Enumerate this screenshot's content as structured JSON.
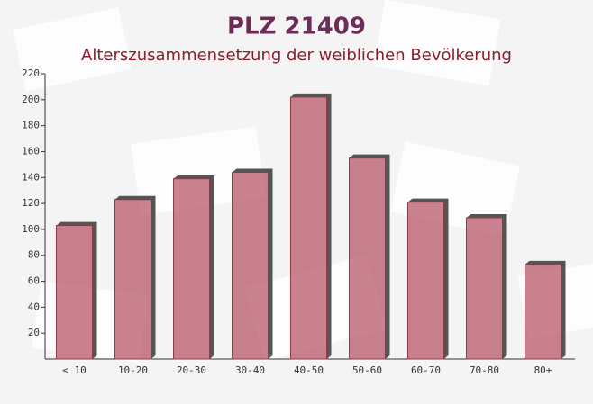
{
  "chart_data": {
    "type": "bar",
    "title": "PLZ 21409",
    "subtitle": "Alterszusammensetzung der weiblichen Bevölkerung",
    "categories": [
      "< 10",
      "10-20",
      "20-30",
      "30-40",
      "40-50",
      "50-60",
      "60-70",
      "70-80",
      "80+"
    ],
    "values": [
      103,
      123,
      139,
      144,
      202,
      155,
      121,
      109,
      73
    ],
    "color": "#b85a68",
    "ylim": [
      0,
      220
    ],
    "yticks": [
      20,
      40,
      60,
      80,
      100,
      120,
      140,
      160,
      180,
      200,
      220
    ]
  }
}
